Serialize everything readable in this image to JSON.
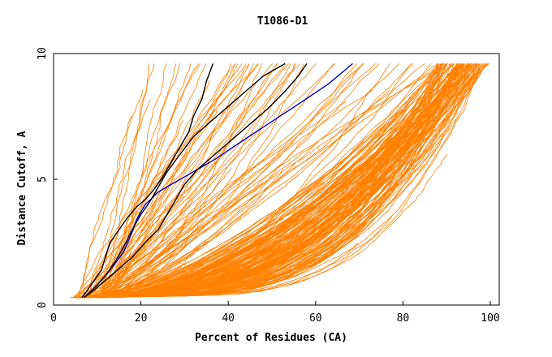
{
  "chart_data": {
    "type": "line",
    "title": "T1086-D1",
    "xlabel": "Percent of Residues (CA)",
    "ylabel": "Distance Cutoff, A",
    "xlim": [
      0,
      100
    ],
    "ylim": [
      0,
      10
    ],
    "xticks": [
      "0",
      "20",
      "40",
      "60",
      "80",
      "100"
    ],
    "yticks": [
      "0",
      "5",
      "10"
    ],
    "grid": false,
    "colors": {
      "background_models": "#ff8000",
      "highlight_black": "#000000",
      "highlight_blue": "#0000cc"
    },
    "highlight_series": [
      {
        "color": "#0000cc",
        "x": [
          7,
          10,
          13,
          16,
          18,
          19,
          21,
          24,
          28,
          32,
          37,
          43,
          50,
          57,
          63,
          68.5
        ],
        "y": [
          0.3,
          0.8,
          1.4,
          2.1,
          2.9,
          3.4,
          4.0,
          4.5,
          4.9,
          5.3,
          5.8,
          6.5,
          7.3,
          8.1,
          8.8,
          9.6
        ]
      },
      {
        "color": "#000000",
        "x": [
          6.5,
          9,
          11,
          12,
          13,
          15,
          17,
          19,
          21,
          23,
          25,
          27,
          29,
          31,
          32,
          34,
          35,
          36.5
        ],
        "y": [
          0.3,
          0.9,
          1.4,
          2.0,
          2.5,
          3.0,
          3.5,
          3.9,
          4.2,
          4.6,
          5.1,
          5.7,
          6.3,
          6.9,
          7.5,
          8.2,
          8.9,
          9.6
        ]
      },
      {
        "color": "#000000",
        "x": [
          7,
          10,
          12,
          14,
          16,
          18,
          20,
          22,
          24,
          26,
          29,
          32,
          36,
          40,
          44,
          48,
          53
        ],
        "y": [
          0.3,
          0.8,
          1.2,
          1.7,
          2.3,
          3.0,
          3.6,
          4.1,
          4.7,
          5.3,
          6.0,
          6.7,
          7.3,
          7.9,
          8.5,
          9.1,
          9.6
        ]
      },
      {
        "color": "#000000",
        "x": [
          7,
          10,
          14,
          18,
          21,
          24,
          26,
          28,
          30,
          33,
          37,
          41,
          45,
          49,
          53,
          56,
          58
        ],
        "y": [
          0.3,
          0.7,
          1.3,
          1.9,
          2.5,
          3.0,
          3.6,
          4.2,
          4.8,
          5.4,
          6.0,
          6.6,
          7.2,
          7.8,
          8.5,
          9.1,
          9.6
        ]
      }
    ]
  }
}
